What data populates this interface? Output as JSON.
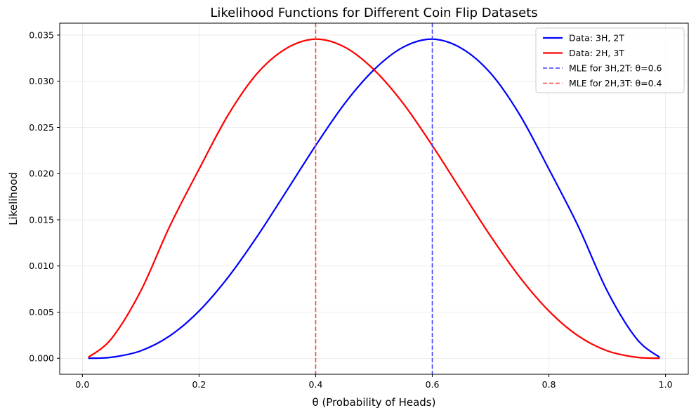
{
  "chart_data": {
    "type": "line",
    "title": "Likelihood Functions for Different Coin Flip Datasets",
    "xlabel": "θ (Probability of Heads)",
    "ylabel": "Likelihood",
    "xlim": [
      -0.039,
      1.039
    ],
    "ylim": [
      -0.00173,
      0.03629
    ],
    "xticks": [
      0.0,
      0.2,
      0.4,
      0.6,
      0.8,
      1.0
    ],
    "xtick_labels": [
      "0.0",
      "0.2",
      "0.4",
      "0.6",
      "0.8",
      "1.0"
    ],
    "yticks": [
      0.0,
      0.005,
      0.01,
      0.015,
      0.02,
      0.025,
      0.03,
      0.035
    ],
    "ytick_labels": [
      "0.000",
      "0.005",
      "0.010",
      "0.015",
      "0.020",
      "0.025",
      "0.030",
      "0.035"
    ],
    "grid": true,
    "legend_position": "top-right",
    "series": [
      {
        "name": "Data: 3H, 2T",
        "color": "#0000ff",
        "style": "solid",
        "x": [
          0.01,
          0.05,
          0.1,
          0.15,
          0.2,
          0.25,
          0.3,
          0.35,
          0.4,
          0.45,
          0.5,
          0.55,
          0.6,
          0.65,
          0.7,
          0.75,
          0.8,
          0.85,
          0.9,
          0.95,
          0.99
        ],
        "y": [
          1e-06,
          0.000113,
          0.00081,
          0.002438,
          0.00512,
          0.008789,
          0.01323,
          0.018111,
          0.02304,
          0.027607,
          0.03125,
          0.033691,
          0.03456,
          0.033568,
          0.03087,
          0.026367,
          0.02048,
          0.014331,
          0.00729,
          0.002143,
          9.7e-05
        ]
      },
      {
        "name": "Data: 2H, 3T",
        "color": "#ff0000",
        "style": "solid",
        "x": [
          0.01,
          0.05,
          0.1,
          0.15,
          0.2,
          0.25,
          0.3,
          0.35,
          0.4,
          0.45,
          0.5,
          0.55,
          0.6,
          0.65,
          0.7,
          0.75,
          0.8,
          0.85,
          0.9,
          0.95,
          0.99
        ],
        "y": [
          9.7e-05,
          0.002143,
          0.00729,
          0.014331,
          0.02048,
          0.026367,
          0.03087,
          0.033568,
          0.03456,
          0.033691,
          0.03125,
          0.027607,
          0.02304,
          0.018111,
          0.01323,
          0.008789,
          0.00512,
          0.002438,
          0.00081,
          0.000113,
          1e-06
        ]
      }
    ],
    "vlines": [
      {
        "name": "MLE for 3H,2T: θ=0.6",
        "x": 0.6,
        "color": "#4040ff",
        "style": "dashed"
      },
      {
        "name": "MLE for 2H,3T: θ=0.4",
        "x": 0.4,
        "color": "#ff4040",
        "style": "dashed"
      }
    ]
  }
}
